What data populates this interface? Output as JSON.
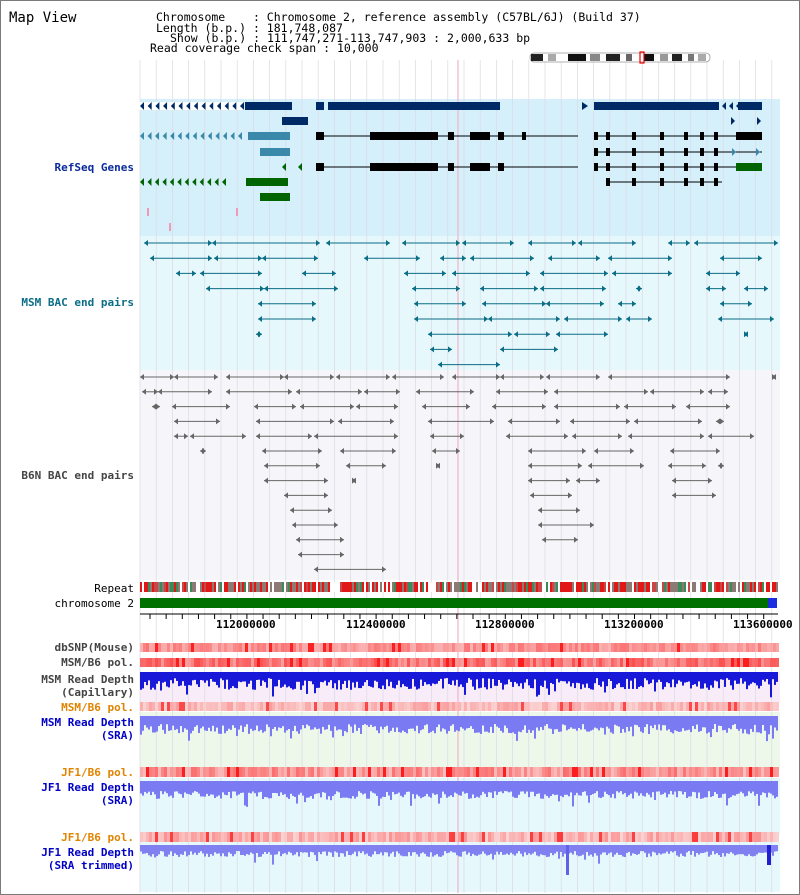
{
  "app": {
    "title": "Map View"
  },
  "info": {
    "chromosome_key": "Chromosome",
    "chromosome_value": "Chromosome 2, reference assembly (C57BL/6J) (Build 37)",
    "length_key": "Length (b.p.)",
    "length_value": "181,748,087",
    "show_key": "Show (b.p.)",
    "show_value": "111,747,271-113,747,903 : 2,000,633 bp",
    "coverage_key": "Read coverage check span",
    "coverage_value": "10,000"
  },
  "tracks": {
    "refseq": "RefSeq Genes",
    "msm_bac": "MSM BAC end pairs",
    "b6n_bac": "B6N BAC end pairs",
    "repeat": "Repeat",
    "chromosome": "chromosome 2",
    "dbsnp": "dbSNP(Mouse)",
    "msm_b6_pol": "MSM/B6 pol.",
    "msm_depth_cap_1": "MSM Read Depth",
    "msm_depth_cap_2": "(Capillary)",
    "msm_b6_pol_2": "MSM/B6 pol.",
    "msm_depth_sra_1": "MSM Read Depth",
    "msm_depth_sra_2": "(SRA)",
    "jf1_b6_pol": "JF1/B6 pol.",
    "jf1_depth_sra_1": "JF1 Read Depth",
    "jf1_depth_sra_2": "(SRA)",
    "jf1_b6_pol_2": "JF1/B6 pol.",
    "jf1_depth_trim_1": "JF1 Read Depth",
    "jf1_depth_trim_2": "(SRA trimmed)"
  },
  "axis": {
    "ticks": [
      "112000000",
      "112400000",
      "112800000",
      "113200000",
      "113600000"
    ]
  },
  "colors": {
    "refseq_bg": "#d6f0fb",
    "bac_bg": "#e6f8fb",
    "msm_label": "#0b6d86",
    "refseq_label": "#0a2a9c",
    "orange_label": "#e08400",
    "blue_label": "#0000c8",
    "b6n_label": "#444444"
  }
}
